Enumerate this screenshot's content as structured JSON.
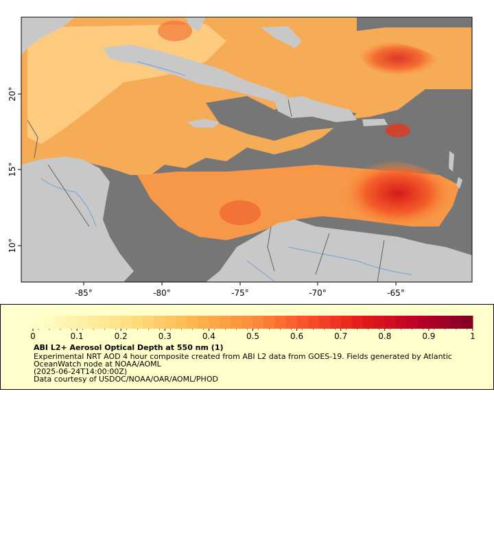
{
  "map": {
    "lon_ticks": [
      "-85°",
      "-80°",
      "-75°",
      "-70°",
      "-65°"
    ],
    "lat_ticks": [
      "20°",
      "15°",
      "10°"
    ],
    "colors": {
      "ocean_no_data": "#767676",
      "land": "#c8c8c8",
      "rivers": "#6fa0d8",
      "borders": "#606060"
    }
  },
  "legend": {
    "ticks": [
      "0",
      "0.1",
      "0.2",
      "0.3",
      "0.4",
      "0.5",
      "0.6",
      "0.7",
      "0.8",
      "0.9",
      "1"
    ],
    "range": [
      0,
      1
    ],
    "colormap": [
      "#ffffcc",
      "#ffeda0",
      "#fed976",
      "#feb24c",
      "#fd8d3c",
      "#fc4e2a",
      "#e31a1c",
      "#bd0026",
      "#800026"
    ],
    "title": "ABI L2+ Aerosol Optical Depth at 550 nm (1)",
    "desc1": "Experimental NRT AOD 4 hour composite created from ABI L2 data from GOES-19. Fields generated by Atlantic",
    "desc2": "OceanWatch node at NOAA/AOML",
    "date": "(2025-06-24T14:00:00Z)",
    "credit": "Data courtesy of USDOC/NOAA/OAR/AOML/PHOD"
  }
}
